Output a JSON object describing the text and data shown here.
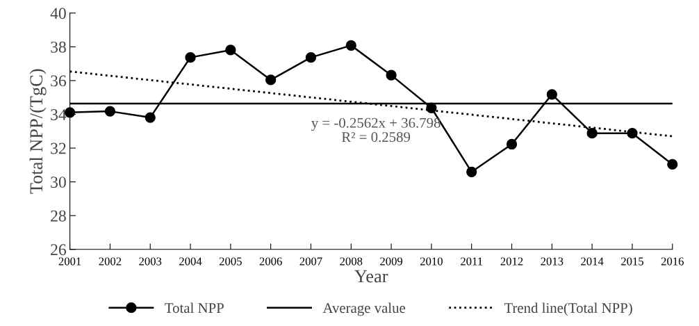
{
  "chart_data": {
    "type": "line",
    "xlabel": "Year",
    "ylabel": "Total NPP/(TgC)",
    "x": [
      2001,
      2002,
      2003,
      2004,
      2005,
      2006,
      2007,
      2008,
      2009,
      2010,
      2011,
      2012,
      2013,
      2014,
      2015,
      2016
    ],
    "series": [
      {
        "name": "Total NPP",
        "color": "#000000",
        "marker": "circle",
        "line_style": "solid",
        "values": [
          34.11,
          34.18,
          33.81,
          37.37,
          37.81,
          36.04,
          37.37,
          38.08,
          36.32,
          34.38,
          30.59,
          32.23,
          35.18,
          32.88,
          32.88,
          31.04
        ]
      },
      {
        "name": "Trend line(Total NPP)",
        "color": "#000000",
        "marker": "none",
        "line_style": "dotted",
        "x": [
          2001,
          2016
        ],
        "values": [
          36.54,
          32.7
        ]
      }
    ],
    "annotations": [
      "y = -0.2562x + 36.798\nR² = 0.2589"
    ],
    "ref_lines": [
      {
        "axis": "y",
        "value": 34.64,
        "label": "Average value",
        "color": "#000000",
        "line_style": "solid"
      }
    ],
    "xlim": [
      2001,
      2016
    ],
    "xticks": [
      2001,
      2002,
      2003,
      2004,
      2005,
      2006,
      2007,
      2008,
      2009,
      2010,
      2011,
      2012,
      2013,
      2014,
      2015,
      2016
    ],
    "ylim": [
      26,
      40
    ],
    "yticks": [
      26,
      28,
      30,
      32,
      34,
      36,
      38,
      40
    ],
    "grid": false,
    "legend": "bottom"
  }
}
